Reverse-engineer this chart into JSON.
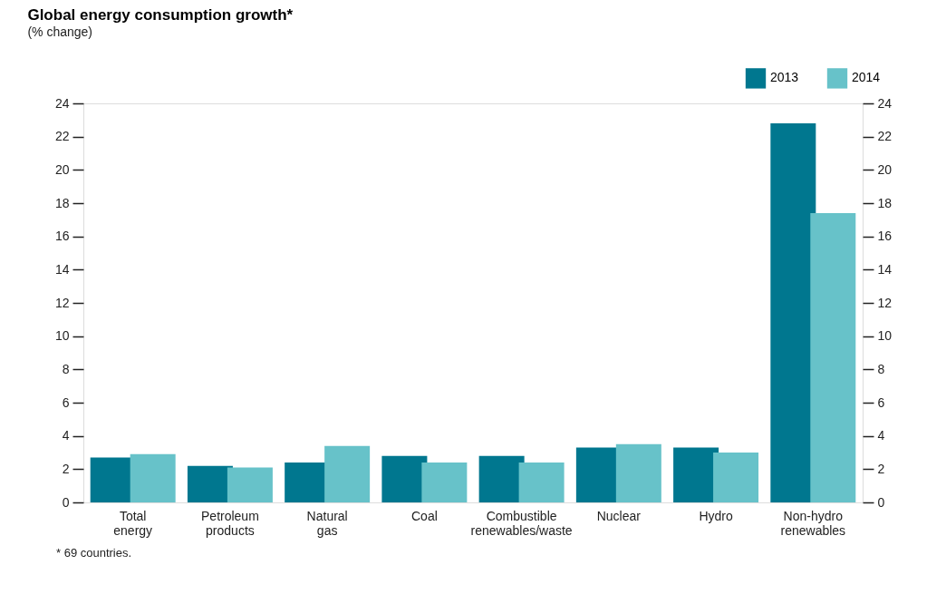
{
  "chart_data": {
    "type": "bar",
    "title": "Global energy consumption growth*",
    "subtitle": "(% change)",
    "categories": [
      "Total energy",
      "Petroleum products",
      "Natural gas",
      "Coal",
      "Combustible renewables/waste",
      "Nuclear",
      "Hydro",
      "Non-hydro renewables"
    ],
    "series": [
      {
        "name": "2013",
        "color": "#00778f",
        "values": [
          2.7,
          2.2,
          2.4,
          2.8,
          2.8,
          3.3,
          3.3,
          22.8
        ]
      },
      {
        "name": "2014",
        "color": "#67c2c9",
        "values": [
          2.9,
          2.1,
          3.4,
          2.4,
          2.4,
          3.5,
          3.0,
          17.4
        ]
      }
    ],
    "ylim": [
      0,
      24
    ],
    "yticks": [
      0,
      2,
      4,
      6,
      8,
      10,
      12,
      14,
      16,
      18,
      20,
      22,
      24
    ],
    "y2lim": [
      0,
      24
    ],
    "y2ticks": [
      0,
      2,
      4,
      6,
      8,
      10,
      12,
      14,
      16,
      18,
      20,
      22,
      24
    ],
    "legend": "top right",
    "grid": false,
    "annotations": [
      "* 69 countries."
    ]
  }
}
